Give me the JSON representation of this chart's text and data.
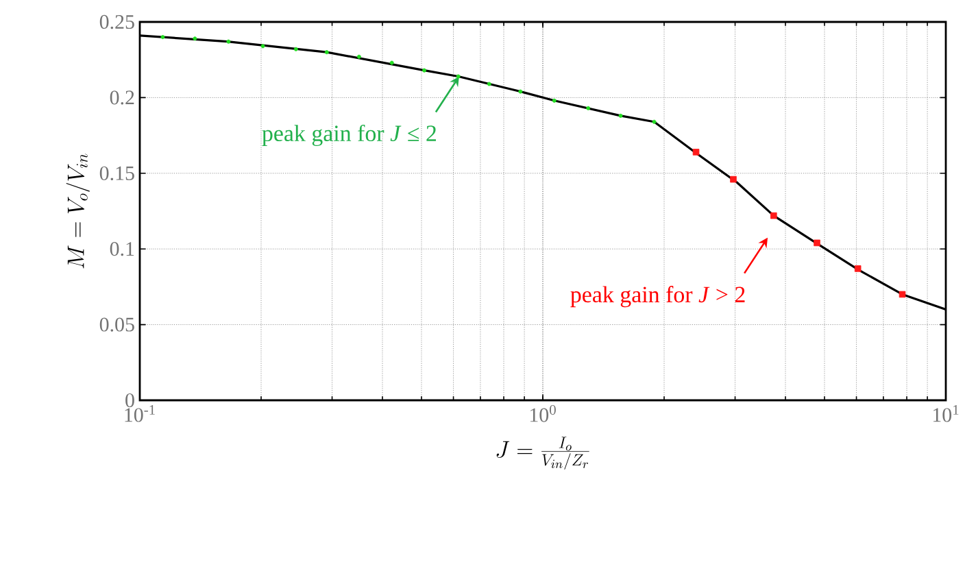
{
  "chart_data": {
    "type": "line",
    "xlabel": "J = \\frac{I_o}{V_{in}/Z_r}",
    "ylabel": "M = V_o/V_{in}",
    "log": "x",
    "xlim": [
      0.1,
      10
    ],
    "ylim": [
      0,
      0.25
    ],
    "xticks": [
      {
        "value": 0.1,
        "label": "10$^{-1}$"
      },
      {
        "value": 1,
        "label": "10$^{0}$"
      },
      {
        "value": 10,
        "label": "10$^{1}$"
      }
    ],
    "yticks": [
      0,
      0.05,
      0.1,
      0.15,
      0.2,
      0.25
    ],
    "grid": true,
    "series": [
      {
        "color": "#000000",
        "marker": "none",
        "x": [
          0.1,
          0.165,
          0.291,
          0.508,
          0.617,
          0.88,
          1.068,
          1.56,
          1.89,
          2.41,
          3.03,
          3.74,
          4.83,
          6.09,
          7.8,
          10
        ],
        "values": [
          0.241,
          0.237,
          0.23,
          0.218,
          0.214,
          0.204,
          0.198,
          0.188,
          0.184,
          0.163,
          0.144,
          0.122,
          0.103,
          0.086,
          0.07,
          0.06
        ]
      },
      {
        "type": "scatter",
        "color": "#22dd22",
        "marker": "circle",
        "x": [
          0.114,
          0.137,
          0.166,
          0.202,
          0.244,
          0.291,
          0.35,
          0.422,
          0.508,
          0.617,
          0.736,
          0.88,
          1.068,
          1.296,
          1.56,
          1.89
        ],
        "values": [
          0.24,
          0.239,
          0.237,
          0.234,
          0.232,
          0.23,
          0.227,
          0.223,
          0.218,
          0.214,
          0.209,
          0.204,
          0.198,
          0.193,
          0.188,
          0.184
        ]
      },
      {
        "type": "scatter",
        "color": "#ff1a1a",
        "marker": "square",
        "x": [
          2.4,
          2.97,
          3.74,
          4.79,
          6.05,
          7.8
        ],
        "values": [
          0.164,
          0.146,
          0.122,
          0.104,
          0.087,
          0.07
        ]
      }
    ],
    "annotations": [
      {
        "text": "peak gain for *J* ≤ 2",
        "x": 0.62,
        "y": 0.214
      },
      "peak gain for *J* > 2"
    ]
  }
}
